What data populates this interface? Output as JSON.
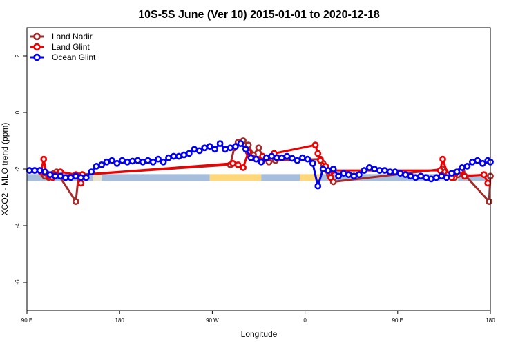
{
  "chart_data": {
    "type": "line",
    "title": "10S-5S June (Ver 10)   2015-01-01 to 2020-12-18",
    "xlabel": "Longitude",
    "ylabel": "XCO2 - MLO trend (ppm)",
    "xlim": [
      90,
      450
    ],
    "ylim": [
      -7,
      3
    ],
    "grid": false,
    "legend_position": "top-left",
    "x_ticks": [
      {
        "value": 90,
        "label": "90 E"
      },
      {
        "value": 162,
        "label": "180"
      },
      {
        "value": 234,
        "label": "90 W"
      },
      {
        "value": 306,
        "label": "0"
      },
      {
        "value": 378,
        "label": "90 E"
      },
      {
        "value": 450,
        "label": "180"
      }
    ],
    "y_ticks": [
      {
        "value": -6,
        "label": "-6"
      },
      {
        "value": -4,
        "label": "-4"
      },
      {
        "value": -2,
        "label": "-2"
      },
      {
        "value": 0,
        "label": "0"
      },
      {
        "value": 2,
        "label": "2"
      }
    ],
    "band": {
      "y_center": -2.3,
      "y_half_height": 0.12,
      "segments": [
        {
          "x0": 90,
          "x1": 141,
          "color": "#a6bddb"
        },
        {
          "x0": 141,
          "x1": 148,
          "color": "#e8e4cc"
        },
        {
          "x0": 148,
          "x1": 232,
          "color": "#a6bddb"
        },
        {
          "x0": 232,
          "x1": 272,
          "color": "#fdd77a"
        },
        {
          "x0": 272,
          "x1": 302,
          "color": "#a6bddb"
        },
        {
          "x0": 302,
          "x1": 318,
          "color": "#fdd77a"
        },
        {
          "x0": 318,
          "x1": 411,
          "color": "#a6bddb"
        },
        {
          "x0": 411,
          "x1": 425,
          "color": "#e8e4cc"
        },
        {
          "x0": 425,
          "x1": 450,
          "color": "#a6bddb"
        }
      ]
    },
    "series": [
      {
        "name": "Land Nadir",
        "color": "#a52a2a",
        "x": [
          101,
          103,
          104,
          107,
          109,
          111,
          113,
          128,
          130,
          133,
          248,
          251,
          254,
          258,
          262,
          266,
          270,
          274,
          278,
          283,
          318,
          320,
          323,
          325,
          328,
          413,
          415,
          417,
          420,
          422,
          425,
          428,
          449,
          451
        ],
        "y": [
          -2.1,
          -2.2,
          -2.25,
          -2.3,
          -2.2,
          -2.15,
          -2.1,
          -3.15,
          -2.25,
          -2.2,
          -1.85,
          -1.25,
          -1.05,
          -1.0,
          -1.15,
          -1.5,
          -1.25,
          -1.65,
          -1.75,
          -1.7,
          -1.65,
          -1.8,
          -2.05,
          -2.2,
          -2.45,
          -2.0,
          -2.1,
          -2.2,
          -2.25,
          -2.3,
          -2.2,
          -2.1,
          -3.15,
          -2.25
        ]
      },
      {
        "name": "Land Glint",
        "color": "#ee0000",
        "x": [
          101,
          103,
          105,
          107,
          110,
          112,
          116,
          128,
          132,
          133,
          250,
          254,
          258,
          262,
          265,
          269,
          273,
          278,
          282,
          314,
          316,
          318,
          322,
          326,
          328,
          411,
          413,
          417,
          420,
          423,
          427,
          430,
          445,
          448
        ],
        "y": [
          -2.1,
          -1.65,
          -2.15,
          -2.25,
          -2.3,
          -2.2,
          -2.1,
          -2.2,
          -2.5,
          -2.2,
          -1.8,
          -1.85,
          -1.95,
          -1.4,
          -1.6,
          -1.65,
          -1.55,
          -1.6,
          -1.45,
          -1.15,
          -1.45,
          -1.7,
          -1.9,
          -2.3,
          -2.05,
          -2.05,
          -1.65,
          -2.2,
          -2.3,
          -2.15,
          -2.05,
          -2.25,
          -2.2,
          -2.5
        ]
      },
      {
        "name": "Ocean Glint",
        "color": "#0000ee",
        "x": [
          92,
          96,
          100,
          104,
          108,
          112,
          116,
          120,
          124,
          128,
          132,
          136,
          140,
          144,
          148,
          152,
          156,
          160,
          164,
          168,
          172,
          176,
          180,
          184,
          188,
          192,
          196,
          200,
          204,
          208,
          212,
          216,
          220,
          224,
          228,
          232,
          236,
          240,
          244,
          248,
          252,
          256,
          260,
          264,
          268,
          272,
          276,
          280,
          284,
          288,
          292,
          296,
          300,
          304,
          308,
          312,
          316,
          320,
          324,
          328,
          332,
          336,
          340,
          344,
          348,
          352,
          356,
          360,
          364,
          368,
          372,
          376,
          380,
          384,
          388,
          392,
          396,
          400,
          404,
          408,
          412,
          416,
          420,
          424,
          428,
          432,
          436,
          440,
          444,
          448,
          452
        ],
        "y": [
          -2.05,
          -2.05,
          -2.05,
          -2.1,
          -2.2,
          -2.25,
          -2.25,
          -2.3,
          -2.3,
          -2.25,
          -2.3,
          -2.3,
          -2.1,
          -1.9,
          -1.85,
          -1.75,
          -1.7,
          -1.8,
          -1.7,
          -1.75,
          -1.72,
          -1.7,
          -1.75,
          -1.7,
          -1.75,
          -1.65,
          -1.75,
          -1.6,
          -1.55,
          -1.55,
          -1.5,
          -1.45,
          -1.3,
          -1.35,
          -1.25,
          -1.2,
          -1.3,
          -1.1,
          -1.3,
          -1.25,
          -1.2,
          -1.1,
          -1.3,
          -1.6,
          -1.65,
          -1.75,
          -1.6,
          -1.55,
          -1.6,
          -1.6,
          -1.55,
          -1.62,
          -1.7,
          -1.6,
          -1.65,
          -1.8,
          -2.6,
          -2.0,
          -2.05,
          -2.0,
          -2.25,
          -2.15,
          -2.2,
          -2.25,
          -2.2,
          -2.05,
          -1.95,
          -2.0,
          -2.05,
          -2.05,
          -2.1,
          -2.1,
          -2.15,
          -2.2,
          -2.25,
          -2.3,
          -2.25,
          -2.3,
          -2.35,
          -2.3,
          -2.25,
          -2.3,
          -2.15,
          -2.1,
          -1.95,
          -1.9,
          -1.75,
          -1.7,
          -1.8,
          -1.7,
          -1.75
        ]
      }
    ]
  }
}
